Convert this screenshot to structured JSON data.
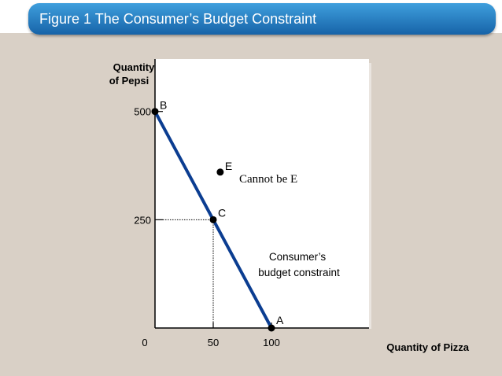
{
  "title": "Figure 1 The Consumer’s Budget Constraint",
  "colors": {
    "line": "#0b3d91",
    "background": "#d9d0c6",
    "plot": "#ffffff",
    "title_bar": "#2a7fc7"
  },
  "chart_data": {
    "type": "line",
    "title": "Figure 1 The Consumer’s Budget Constraint",
    "xlabel": "Quantity of Pizza",
    "ylabel": [
      "Quantity",
      "of Pepsi"
    ],
    "x_ticks": [
      "0",
      "50",
      "100"
    ],
    "y_ticks": [
      "250",
      "500"
    ],
    "series": [
      {
        "x": [
          0,
          100
        ],
        "y": [
          500,
          0
        ],
        "label": [
          "Consumer’s",
          "budget constraint"
        ]
      }
    ],
    "points": [
      {
        "label": "B",
        "x": 0,
        "y": 500
      },
      {
        "label": "C",
        "x": 50,
        "y": 250
      },
      {
        "label": "A",
        "x": 100,
        "y": 0
      },
      {
        "label": "E",
        "x": 56,
        "y": 360
      }
    ],
    "annotation": "Cannot be E",
    "xlim": [
      0,
      185
    ],
    "ylim": [
      0,
      550
    ]
  }
}
